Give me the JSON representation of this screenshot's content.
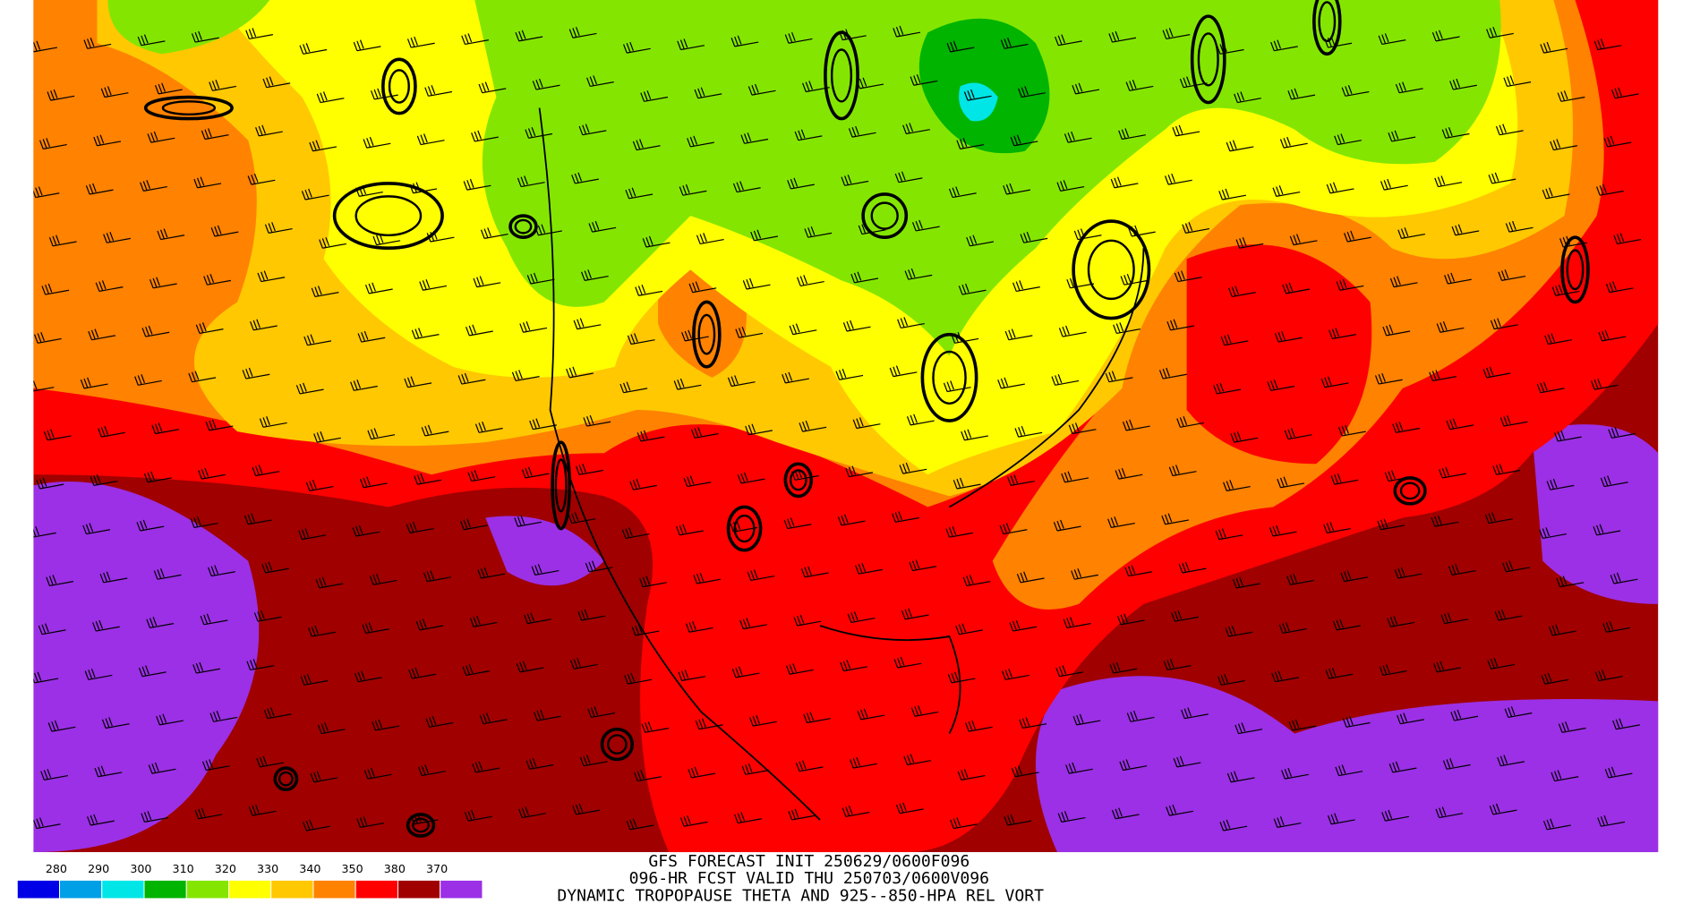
{
  "legend": {
    "labels": [
      "280",
      "290",
      "300",
      "310",
      "320",
      "330",
      "340",
      "350",
      "380",
      "370"
    ],
    "colors": [
      "#0000e6",
      "#00a0e6",
      "#00e6e6",
      "#00b400",
      "#84e600",
      "#ffff00",
      "#ffc800",
      "#ff8200",
      "#ff0000",
      "#a00000",
      "#9b30e6"
    ]
  },
  "caption": {
    "line1": "GFS FORECAST INIT 250629/0600F096",
    "line2": "096-HR FCST VALID THU 250703/0600V096",
    "line3": "DYNAMIC TROPOPAUSE THETA AND 925--850-HPA REL VORT"
  }
}
